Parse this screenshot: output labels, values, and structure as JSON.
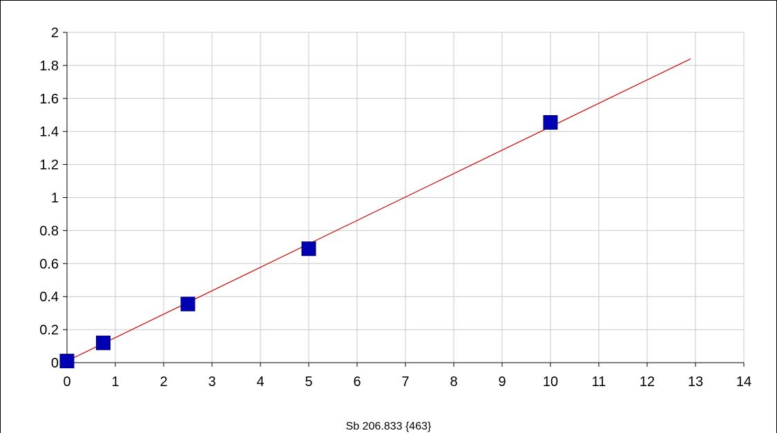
{
  "chart_data": {
    "type": "scatter",
    "title": "Sb 206.833 {463}",
    "xlabel": "",
    "ylabel": "",
    "xlim": [
      0,
      14
    ],
    "ylim": [
      0,
      2
    ],
    "x_ticks": [
      "0",
      "1",
      "2",
      "3",
      "4",
      "5",
      "6",
      "7",
      "8",
      "9",
      "10",
      "11",
      "12",
      "13",
      "14"
    ],
    "y_ticks": [
      "0",
      "0.2",
      "0.4",
      "0.6",
      "0.8",
      "1",
      "1.2",
      "1.4",
      "1.6",
      "1.8",
      "2"
    ],
    "grid": true,
    "legend": "none",
    "series": [
      {
        "type": "scatter",
        "marker": "square",
        "color": "#0000b3",
        "points": [
          {
            "x": 0.0,
            "y": 0.01
          },
          {
            "x": 0.75,
            "y": 0.12
          },
          {
            "x": 2.5,
            "y": 0.355
          },
          {
            "x": 5.0,
            "y": 0.69
          },
          {
            "x": 10.0,
            "y": 1.455
          }
        ]
      },
      {
        "type": "line",
        "color": "#cc0000",
        "points": [
          {
            "x": 0.0,
            "y": 0.01
          },
          {
            "x": 12.9,
            "y": 1.84
          }
        ]
      }
    ]
  }
}
